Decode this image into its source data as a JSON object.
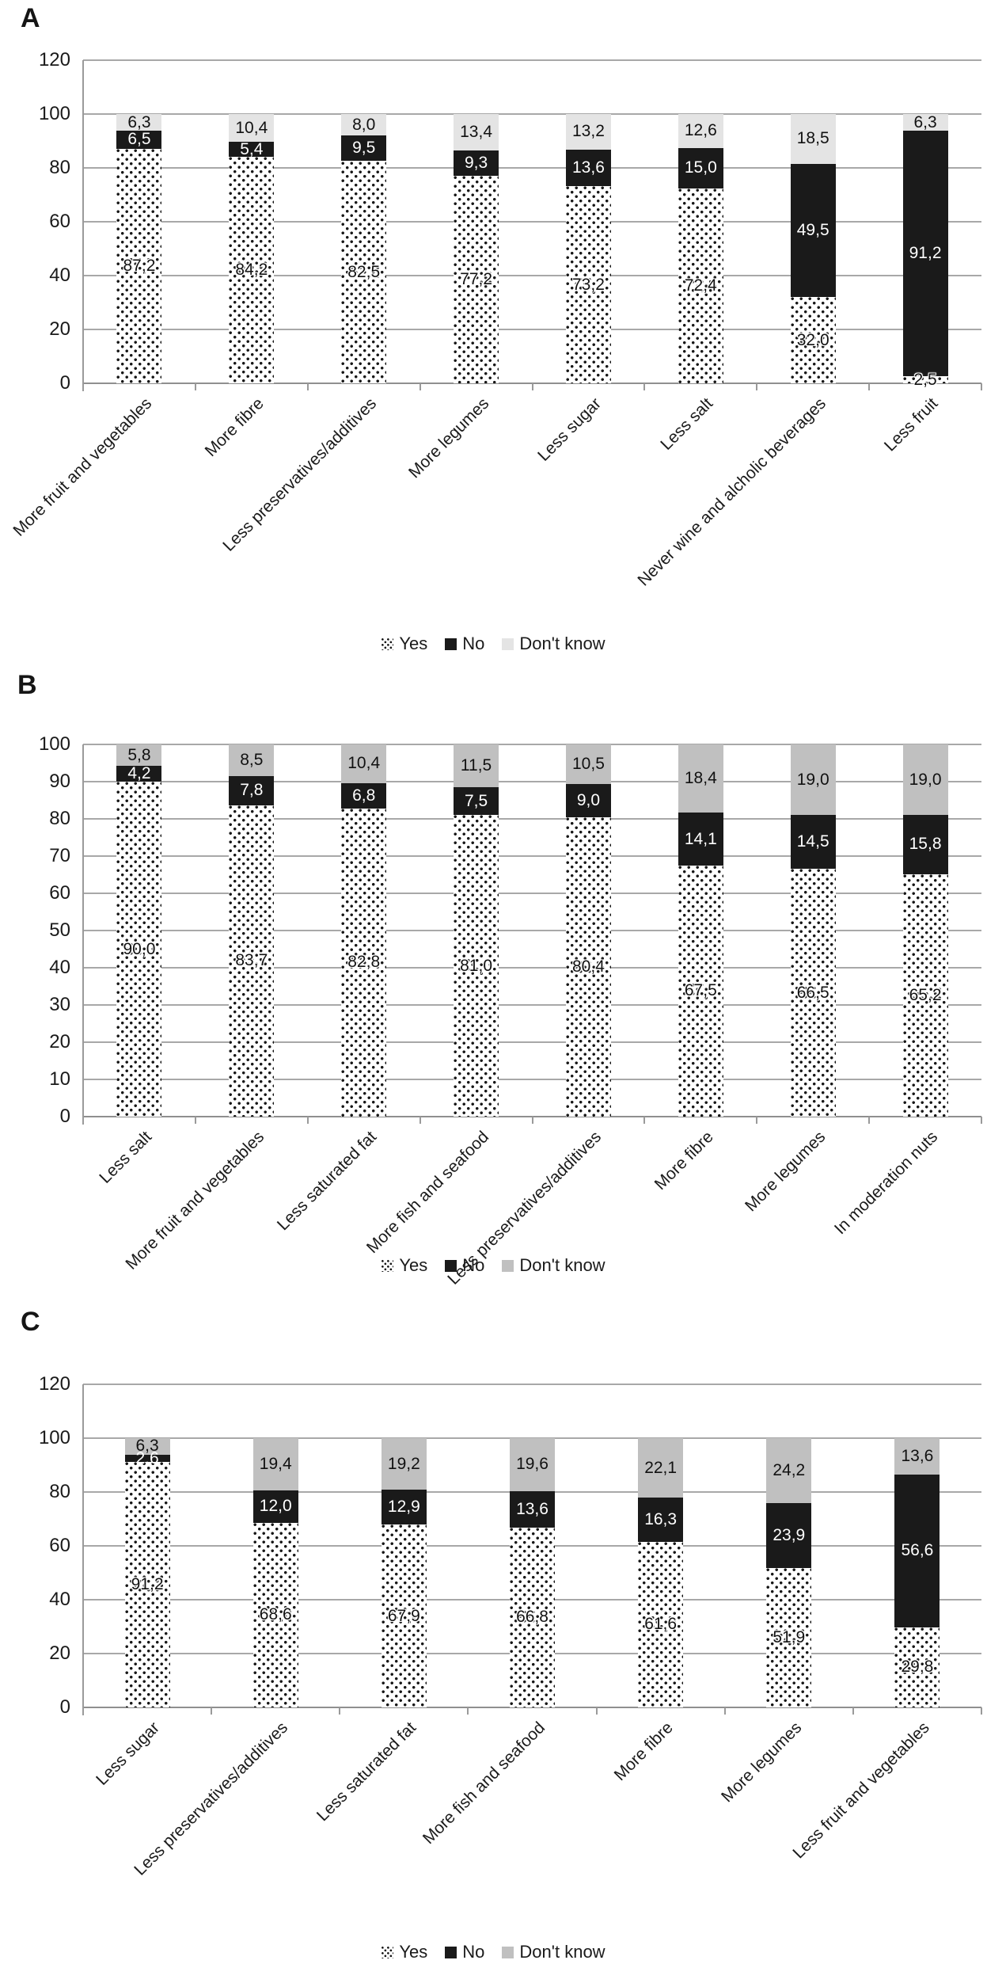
{
  "figure": {
    "panels": [
      "A",
      "B",
      "C"
    ],
    "legend_labels": [
      "Yes",
      "No",
      "Don't know"
    ],
    "colors": {
      "no_black": "#1a1a1a",
      "dont_know_light": "#e4e4e4",
      "dont_know_medium": "#c0c0c0",
      "grid": "#a8a8a8"
    }
  },
  "chart_data": [
    {
      "type": "bar",
      "stacked": true,
      "units": "percent",
      "panel": "A",
      "title": "",
      "xlabel": "",
      "ylabel": "",
      "ylim": [
        0,
        120
      ],
      "ytick_step": 20,
      "grid": true,
      "legend_position": "bottom-center",
      "legend": [
        "Yes",
        "No",
        "Don't know"
      ],
      "categories": [
        "More fruit and vegetables",
        "More fibre",
        "Less preservatives/additives",
        "More legumes",
        "Less sugar",
        "Less salt",
        "Never wine and alcholic beverages",
        "Less fruit"
      ],
      "series": [
        {
          "name": "Yes",
          "style": "dots",
          "color": "#ffffff",
          "values": [
            87.2,
            84.2,
            82.5,
            77.2,
            73.2,
            72.4,
            32.0,
            2.5
          ]
        },
        {
          "name": "No",
          "style": "black",
          "color": "#1a1a1a",
          "values": [
            6.5,
            5.4,
            9.5,
            9.3,
            13.6,
            15.0,
            49.5,
            91.2
          ]
        },
        {
          "name": "Don't know",
          "style": "gray",
          "color": "#e4e4e4",
          "values": [
            6.3,
            10.4,
            8.0,
            13.4,
            13.2,
            12.6,
            18.5,
            6.3
          ]
        }
      ]
    },
    {
      "type": "bar",
      "stacked": true,
      "units": "percent",
      "panel": "B",
      "title": "",
      "xlabel": "",
      "ylabel": "",
      "ylim": [
        0,
        100
      ],
      "ytick_step": 10,
      "grid": true,
      "legend_position": "bottom-center",
      "legend": [
        "Yes",
        "No",
        "Don't know"
      ],
      "categories": [
        "Less salt",
        "More fruit and vegetables",
        "Less saturated fat",
        "More fish and seafood",
        "Less preservatives/additives",
        "More fibre",
        "More legumes",
        "In moderation nuts"
      ],
      "series": [
        {
          "name": "Yes",
          "style": "dots",
          "color": "#ffffff",
          "values": [
            90.0,
            83.7,
            82.8,
            81.0,
            80.4,
            67.5,
            66.5,
            65.2
          ]
        },
        {
          "name": "No",
          "style": "black",
          "color": "#1a1a1a",
          "values": [
            4.2,
            7.8,
            6.8,
            7.5,
            9.0,
            14.1,
            14.5,
            15.8
          ]
        },
        {
          "name": "Don't know",
          "style": "gray",
          "color": "#c0c0c0",
          "values": [
            5.8,
            8.5,
            10.4,
            11.5,
            10.5,
            18.4,
            19.0,
            19.0
          ]
        }
      ]
    },
    {
      "type": "bar",
      "stacked": true,
      "units": "percent",
      "panel": "C",
      "title": "",
      "xlabel": "",
      "ylabel": "",
      "ylim": [
        0,
        120
      ],
      "ytick_step": 20,
      "grid": true,
      "legend_position": "bottom-center",
      "legend": [
        "Yes",
        "No",
        "Don't know"
      ],
      "categories": [
        "Less sugar",
        "Less preservatives/additives",
        "Less saturated fat",
        "More fish and seafood",
        "More fibre",
        "More legumes",
        "Less fruit and vegetables"
      ],
      "series": [
        {
          "name": "Yes",
          "style": "dots",
          "color": "#ffffff",
          "values": [
            91.2,
            68.6,
            67.9,
            66.8,
            61.6,
            51.9,
            29.8
          ]
        },
        {
          "name": "No",
          "style": "black",
          "color": "#1a1a1a",
          "values": [
            2.6,
            12.0,
            12.9,
            13.6,
            16.3,
            23.9,
            56.6
          ]
        },
        {
          "name": "Don't know",
          "style": "gray",
          "color": "#c0c0c0",
          "values": [
            6.3,
            19.4,
            19.2,
            19.6,
            22.1,
            24.2,
            13.6
          ]
        }
      ]
    }
  ]
}
